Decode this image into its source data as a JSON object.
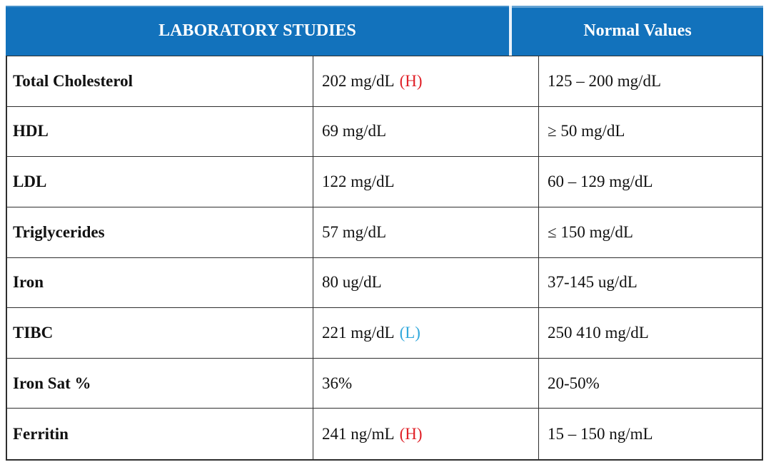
{
  "table": {
    "header": {
      "studies_label": "LABORATORY STUDIES",
      "normal_label": "Normal Values"
    },
    "colors": {
      "header_bg": "#1272BC",
      "high_flag": "#E02128",
      "low_flag": "#31A8DC",
      "border": "#2E2E2E"
    },
    "rows": [
      {
        "test": "Total Cholesterol",
        "value": "202 mg/dL",
        "flag": "(H)",
        "flag_color": "#E02128",
        "normal": "125 – 200 mg/dL"
      },
      {
        "test": "HDL",
        "value": "69 mg/dL",
        "flag": "",
        "flag_color": "",
        "normal": "≥ 50 mg/dL"
      },
      {
        "test": "LDL",
        "value": "122 mg/dL",
        "flag": "",
        "flag_color": "",
        "normal": "60 – 129 mg/dL"
      },
      {
        "test": "Triglycerides",
        "value": "57 mg/dL",
        "flag": "",
        "flag_color": "",
        "normal": "≤ 150 mg/dL"
      },
      {
        "test": "Iron",
        "value": "80 ug/dL",
        "flag": "",
        "flag_color": "",
        "normal": "37-145 ug/dL"
      },
      {
        "test": "TIBC",
        "value": "221 mg/dL",
        "flag": "(L)",
        "flag_color": "#31A8DC",
        "normal": "250 410 mg/dL"
      },
      {
        "test": "Iron Sat %",
        "value": "36%",
        "flag": "",
        "flag_color": "",
        "normal": "20-50%"
      },
      {
        "test": "Ferritin",
        "value": "241 ng/mL",
        "flag": "(H)",
        "flag_color": "#E02128",
        "normal": "15 – 150 ng/mL"
      }
    ]
  }
}
